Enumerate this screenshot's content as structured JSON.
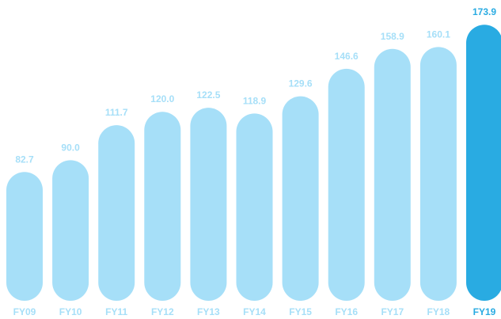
{
  "chart_data": {
    "type": "bar",
    "categories": [
      "FY09",
      "FY10",
      "FY11",
      "FY12",
      "FY13",
      "FY14",
      "FY15",
      "FY16",
      "FY17",
      "FY18",
      "FY19"
    ],
    "values": [
      82.7,
      90.0,
      111.7,
      120.0,
      122.5,
      118.9,
      129.6,
      146.6,
      158.9,
      160.1,
      173.9
    ],
    "value_labels": [
      "82.7",
      "90.0",
      "111.7",
      "120.0",
      "122.5",
      "118.9",
      "129.6",
      "146.6",
      "158.9",
      "160.1",
      "173.9"
    ],
    "highlight_index": 10,
    "title": "",
    "xlabel": "",
    "ylabel": "",
    "grid": false,
    "legend": "none",
    "colors": {
      "bar": "#a6dff8",
      "bar_highlight": "#29abe2",
      "label": "#a6dff8",
      "label_highlight": "#29abe2"
    }
  }
}
